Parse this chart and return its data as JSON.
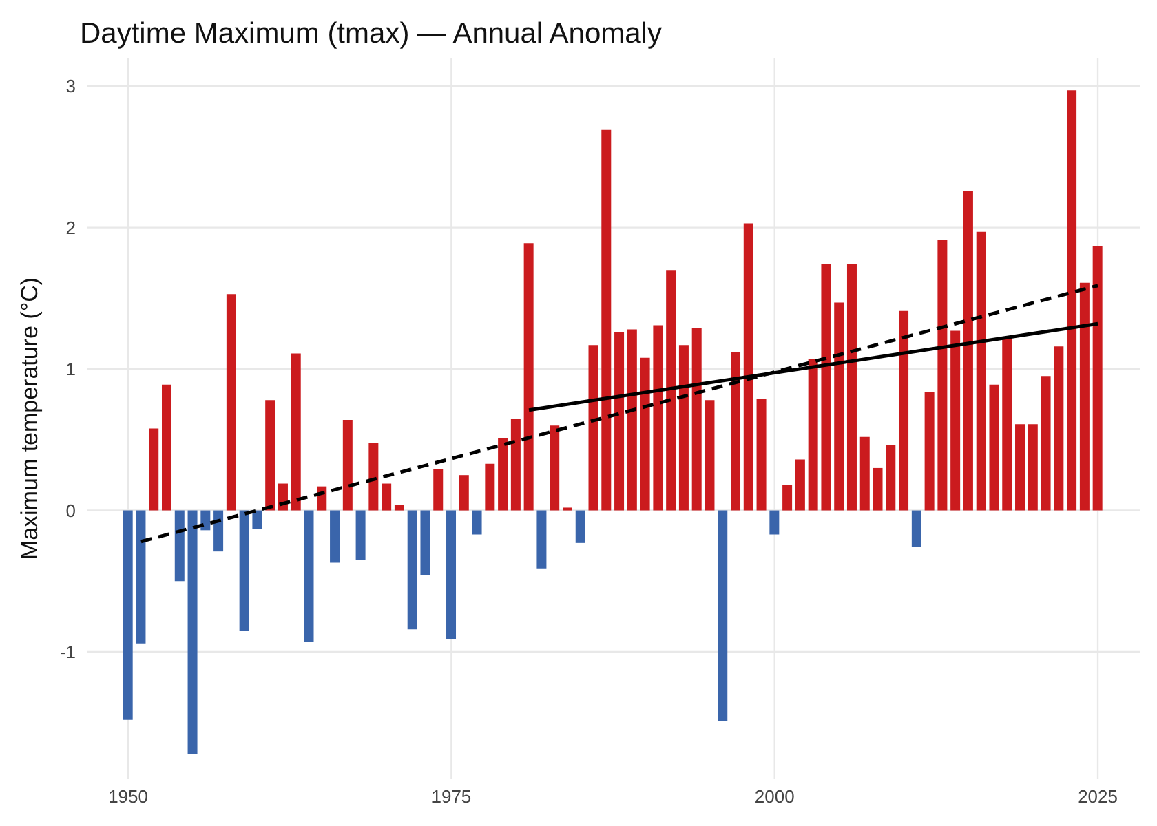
{
  "chart_data": {
    "type": "bar",
    "title": "Daytime Maximum (tmax) — Annual Anomaly",
    "ylabel": "Maximum temperature (°C)",
    "x": [
      1950,
      1951,
      1952,
      1953,
      1954,
      1955,
      1956,
      1957,
      1958,
      1959,
      1960,
      1961,
      1962,
      1963,
      1964,
      1965,
      1966,
      1967,
      1968,
      1969,
      1970,
      1971,
      1972,
      1973,
      1974,
      1975,
      1976,
      1977,
      1978,
      1979,
      1980,
      1981,
      1982,
      1983,
      1984,
      1985,
      1986,
      1987,
      1988,
      1989,
      1990,
      1991,
      1992,
      1993,
      1994,
      1995,
      1996,
      1997,
      1998,
      1999,
      2000,
      2001,
      2002,
      2003,
      2004,
      2005,
      2006,
      2007,
      2008,
      2009,
      2010,
      2011,
      2012,
      2013,
      2014,
      2015,
      2016,
      2017,
      2018,
      2019,
      2020,
      2021,
      2022,
      2023,
      2024,
      2025
    ],
    "series": [
      {
        "values": [
          -1.48,
          -0.94,
          0.58,
          0.89,
          -0.5,
          -1.72,
          -0.14,
          -0.29,
          1.53,
          -0.85,
          -0.13,
          0.78,
          0.19,
          1.11,
          -0.93,
          0.17,
          -0.37,
          0.64,
          -0.35,
          0.48,
          0.19,
          0.04,
          -0.84,
          -0.46,
          0.29,
          -0.91,
          0.25,
          -0.17,
          0.33,
          0.51,
          0.65,
          1.89,
          -0.41,
          0.6,
          0.02,
          -0.23,
          1.17,
          2.69,
          1.26,
          1.28,
          1.08,
          1.31,
          1.7,
          1.17,
          1.29,
          0.78,
          -1.49,
          1.12,
          2.03,
          0.79,
          -0.17,
          0.18,
          0.36,
          1.07,
          1.74,
          1.47,
          1.74,
          0.52,
          0.3,
          0.46,
          1.41,
          -0.26,
          0.84,
          1.91,
          1.27,
          2.26,
          1.97,
          0.89,
          1.22,
          0.61,
          0.61,
          0.95,
          1.16,
          2.97,
          1.61,
          1.87
        ],
        "colors": [
          "#3a65ab",
          "#3a65ab",
          "#cb1b1e",
          "#cb1b1e",
          "#3a65ab",
          "#3a65ab",
          "#3a65ab",
          "#3a65ab",
          "#cb1b1e",
          "#3a65ab",
          "#3a65ab",
          "#cb1b1e",
          "#cb1b1e",
          "#cb1b1e",
          "#3a65ab",
          "#cb1b1e",
          "#3a65ab",
          "#cb1b1e",
          "#3a65ab",
          "#cb1b1e",
          "#cb1b1e",
          "#cb1b1e",
          "#3a65ab",
          "#3a65ab",
          "#cb1b1e",
          "#3a65ab",
          "#cb1b1e",
          "#3a65ab",
          "#cb1b1e",
          "#cb1b1e",
          "#cb1b1e",
          "#cb1b1e",
          "#3a65ab",
          "#cb1b1e",
          "#cb1b1e",
          "#3a65ab",
          "#cb1b1e",
          "#cb1b1e",
          "#cb1b1e",
          "#cb1b1e",
          "#cb1b1e",
          "#cb1b1e",
          "#cb1b1e",
          "#cb1b1e",
          "#cb1b1e",
          "#cb1b1e",
          "#3a65ab",
          "#cb1b1e",
          "#cb1b1e",
          "#cb1b1e",
          "#3a65ab",
          "#cb1b1e",
          "#cb1b1e",
          "#cb1b1e",
          "#cb1b1e",
          "#cb1b1e",
          "#cb1b1e",
          "#cb1b1e",
          "#cb1b1e",
          "#cb1b1e",
          "#cb1b1e",
          "#3a65ab",
          "#cb1b1e",
          "#cb1b1e",
          "#cb1b1e",
          "#cb1b1e",
          "#cb1b1e",
          "#cb1b1e",
          "#cb1b1e",
          "#cb1b1e",
          "#cb1b1e",
          "#cb1b1e",
          "#cb1b1e",
          "#cb1b1e",
          "#cb1b1e",
          "#cb1b1e"
        ]
      },
      {
        "type": "line",
        "x": [
          1951,
          2025
        ],
        "values": [
          -0.22,
          1.59
        ],
        "color": "#000000",
        "line_style": "dashed"
      },
      {
        "type": "line",
        "x": [
          1981,
          2025
        ],
        "values": [
          0.71,
          1.32
        ],
        "color": "#000000",
        "line_style": "solid"
      }
    ],
    "xlim": [
      1946.8,
      2028.3
    ],
    "xticks": [
      1950,
      1975,
      2000,
      2025
    ],
    "ylim": [
      -1.9,
      3.2
    ],
    "yticks": [
      -1,
      0,
      1,
      2,
      3
    ],
    "grid": true
  }
}
